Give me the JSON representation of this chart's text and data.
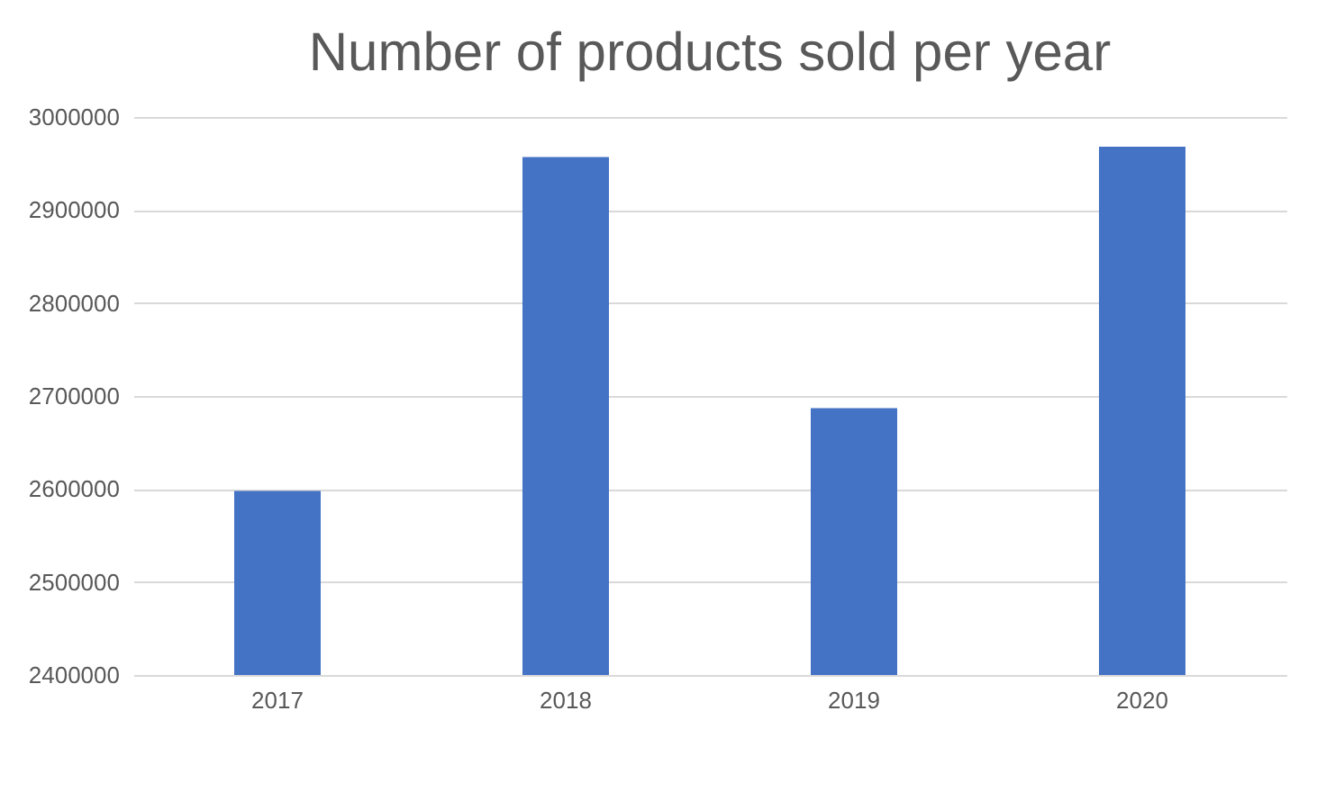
{
  "chart_data": {
    "type": "bar",
    "title": "Number of products sold per year",
    "categories": [
      "2017",
      "2018",
      "2019",
      "2020"
    ],
    "values": [
      2598000,
      2957000,
      2687000,
      2968000
    ],
    "color": "#4472c4",
    "ylim": [
      2400000,
      3000000
    ],
    "yticks": [
      2400000,
      2500000,
      2600000,
      2700000,
      2800000,
      2900000,
      3000000
    ],
    "grid": "y"
  }
}
